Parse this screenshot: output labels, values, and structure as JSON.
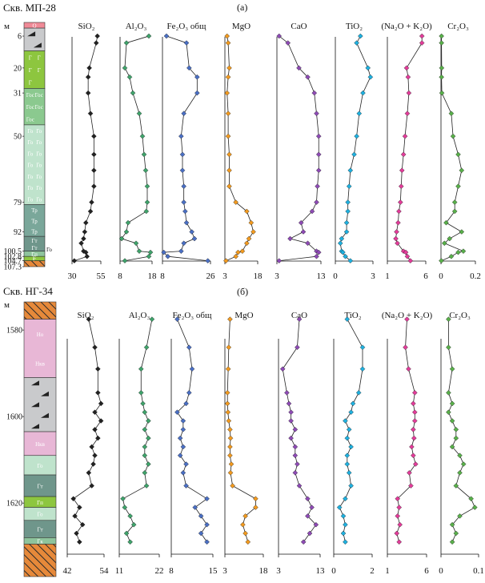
{
  "figure": {
    "panels": [
      {
        "well_label": "Скв. МП-28",
        "panel_label": "(а)",
        "depth_unit": "м",
        "depth_ticks": [
          {
            "label": "6",
            "value": 6
          },
          {
            "label": "20",
            "value": 20
          },
          {
            "label": "31",
            "value": 31
          },
          {
            "label": "50",
            "value": 50
          },
          {
            "label": "79",
            "value": 79
          },
          {
            "label": "92",
            "value": 92
          },
          {
            "label": "100.5",
            "value": 100.5
          },
          {
            "label": "102.8",
            "value": 102.8
          },
          {
            "label": "104.7",
            "value": 104.7
          },
          {
            "label": "107.3",
            "value": 107.3
          }
        ],
        "column_label_side": "Го",
        "lithology": [
          {
            "from": 0,
            "to": 2.5,
            "color": "#f08a97",
            "labels": [
              "Q"
            ],
            "pattern": "none"
          },
          {
            "from": 2.5,
            "to": 12.5,
            "color": "#c9cacc",
            "labels": [],
            "pattern": "gravel"
          },
          {
            "from": 12.5,
            "to": 29,
            "color": "#8dc63f",
            "labels": [
              "Г",
              "Г",
              "Г",
              "Г",
              "Г"
            ],
            "pattern": "none"
          },
          {
            "from": 29,
            "to": 45,
            "color": "#8bc98f",
            "labels": [
              "Гос",
              "Гос",
              "Гос",
              "Гос",
              "Гос"
            ],
            "pattern": "none"
          },
          {
            "from": 45,
            "to": 80,
            "color": "#bfe3cc",
            "labels": [
              "Го",
              "Го",
              "Го",
              "Го",
              "Го",
              "Го",
              "Го",
              "Го",
              "Го",
              "Го",
              "Го",
              "Го",
              "Го",
              "Го"
            ],
            "pattern": "none"
          },
          {
            "from": 80,
            "to": 94,
            "color": "#7aa79a",
            "labels": [
              "Тр",
              "Тр",
              "Тр"
            ],
            "pattern": "none"
          },
          {
            "from": 94,
            "to": 100.5,
            "color": "#6f968b",
            "labels": [
              "Гт",
              "Гт"
            ],
            "pattern": "none"
          },
          {
            "from": 100.5,
            "to": 102.8,
            "color": "#8ec49c",
            "labels": [
              "Гп"
            ],
            "pattern": "none"
          },
          {
            "from": 102.8,
            "to": 104.7,
            "color": "#8dc63f",
            "labels": [
              "Г",
              "Г"
            ],
            "pattern": "none"
          },
          {
            "from": 104.7,
            "to": 107.3,
            "color": "#e6893a",
            "labels": [],
            "pattern": "hatch"
          }
        ]
      },
      {
        "well_label": "Скв. НГ-34",
        "panel_label": "(б)",
        "depth_unit": "м",
        "depth_ticks": [
          {
            "label": "1580",
            "value": 1580
          },
          {
            "label": "1600",
            "value": 1600
          },
          {
            "label": "1620",
            "value": 1620
          }
        ],
        "lithology": [
          {
            "from": 1573.5,
            "to": 1577.5,
            "color": "#e6893a",
            "labels": [],
            "pattern": "hatch"
          },
          {
            "from": 1577.5,
            "to": 1591,
            "color": "#e8b7d6",
            "labels": [
              "Но",
              "Нкв"
            ],
            "pattern": "none"
          },
          {
            "from": 1591,
            "to": 1603.5,
            "color": "#c9cacc",
            "labels": [],
            "pattern": "gravel"
          },
          {
            "from": 1603.5,
            "to": 1609,
            "color": "#e8b7d6",
            "labels": [
              "Нкв"
            ],
            "pattern": "none"
          },
          {
            "from": 1609,
            "to": 1613.5,
            "color": "#bfe3cc",
            "labels": [
              "Го"
            ],
            "pattern": "none"
          },
          {
            "from": 1613.5,
            "to": 1618.5,
            "color": "#6f968b",
            "labels": [
              "Гт"
            ],
            "pattern": "none"
          },
          {
            "from": 1618.5,
            "to": 1621,
            "color": "#8dc63f",
            "labels": [
              "Гп"
            ],
            "pattern": "none"
          },
          {
            "from": 1621,
            "to": 1624,
            "color": "#bfe3cc",
            "labels": [
              "Го"
            ],
            "pattern": "none"
          },
          {
            "from": 1624,
            "to": 1628,
            "color": "#6f968b",
            "labels": [
              "Гт"
            ],
            "pattern": "none"
          },
          {
            "from": 1628,
            "to": 1629.5,
            "color": "#8ec49c",
            "labels": [
              "Гк"
            ],
            "pattern": "none"
          },
          {
            "from": 1629.5,
            "to": 1637,
            "color": "#e6893a",
            "labels": [],
            "pattern": "hatch"
          }
        ]
      }
    ]
  },
  "chart_data": [
    {
      "type": "line",
      "title": "Скв. МП-28 (а)",
      "ylabel": "м",
      "ylim": [
        0,
        107.3
      ],
      "depths": [
        6,
        9,
        20,
        24,
        31,
        40,
        50,
        58,
        65,
        72,
        79,
        83,
        88,
        92,
        95,
        97,
        100.5,
        101,
        102.8,
        104.7
      ],
      "series": [
        {
          "name": "SiO₂",
          "color": "#222222",
          "xlim": [
            30,
            55
          ],
          "xticks": [
            "30",
            "55"
          ],
          "values": [
            52,
            51,
            45,
            44,
            44,
            46,
            49,
            49,
            49,
            49,
            47,
            46,
            42,
            41,
            40,
            38,
            40,
            42,
            43,
            32
          ]
        },
        {
          "name": "Al₂O₃",
          "color": "#3fa36b",
          "xlim": [
            8,
            18
          ],
          "xticks": [
            "8",
            "18"
          ],
          "values": [
            17,
            10,
            9.5,
            11,
            12,
            14,
            15,
            15.5,
            16,
            16.5,
            16.5,
            16.2,
            10.5,
            10,
            8.5,
            13,
            14,
            17.5,
            17,
            9.5
          ]
        },
        {
          "name": "Fe₂O₃ общ",
          "color": "#4a6fc4",
          "xlim": [
            8,
            26
          ],
          "xticks": [
            "8",
            "26"
          ],
          "values": [
            9.5,
            17,
            18,
            21,
            21,
            16,
            15,
            15.5,
            15.5,
            16,
            16,
            16.5,
            17,
            19,
            20,
            16,
            15,
            8.5,
            10,
            25
          ]
        },
        {
          "name": "MgO",
          "color": "#f29a1f",
          "xlim": [
            3,
            18
          ],
          "xticks": [
            "3",
            "18"
          ],
          "values": [
            4,
            4.5,
            5,
            4.5,
            4,
            4.5,
            4.5,
            5,
            5,
            5,
            8,
            13,
            15,
            16,
            14,
            13,
            11,
            9,
            8,
            3.5
          ]
        },
        {
          "name": "CaO",
          "color": "#8e4bb5",
          "xlim": [
            3,
            13
          ],
          "xticks": [
            "3",
            "13"
          ],
          "values": [
            3.5,
            5.5,
            8,
            10,
            11.5,
            12,
            12.5,
            12.5,
            12.5,
            12.2,
            12,
            11,
            8.5,
            9,
            6,
            10,
            12,
            12.5,
            12,
            3.5
          ]
        },
        {
          "name": "TiO₂",
          "color": "#1fb1e0",
          "xlim": [
            0,
            3
          ],
          "xticks": [
            "0",
            "3"
          ],
          "values": [
            2,
            1.7,
            2.6,
            2.8,
            2.2,
            1.9,
            1.7,
            1.5,
            1.2,
            1.1,
            1,
            1,
            0.9,
            0.9,
            0.5,
            0.4,
            0.5,
            0.6,
            0.8,
            1.2
          ]
        },
        {
          "name": "(Na₂O + K₂O)",
          "color": "#e33c9a",
          "xlim": [
            1,
            6
          ],
          "xticks": [
            "1",
            "6"
          ],
          "values": [
            5.5,
            5.5,
            3.5,
            3.7,
            3.8,
            3.6,
            3.3,
            3.1,
            2.9,
            2.8,
            2.7,
            2.5,
            2.4,
            2.2,
            2.1,
            2.3,
            3.1,
            3.4,
            3.6,
            4
          ]
        },
        {
          "name": "Cr₂O₃",
          "color": "#59b04a",
          "xlim": [
            0,
            0.2
          ],
          "xticks": [
            "0",
            "0.2"
          ],
          "values": [
            0.003,
            0.003,
            0.004,
            0.003,
            0.005,
            0.06,
            0.07,
            0.1,
            0.12,
            0.1,
            0.08,
            0.08,
            0.03,
            0.12,
            0.05,
            0.02,
            0.13,
            0.1,
            0.06,
            0.002
          ]
        }
      ]
    },
    {
      "type": "line",
      "title": "Скв. НГ-34 (б)",
      "ylabel": "м",
      "ylim": [
        1573.5,
        1637
      ],
      "depths": [
        1577.5,
        1584,
        1589,
        1594.5,
        1597,
        1599,
        1601,
        1603,
        1605,
        1607,
        1609,
        1611,
        1613,
        1616,
        1619,
        1621,
        1623,
        1625,
        1627,
        1629
      ],
      "series": [
        {
          "name": "SiO₂",
          "color": "#222222",
          "xlim": [
            42,
            54
          ],
          "xticks": [
            "42",
            "54"
          ],
          "values": [
            49,
            51,
            52,
            52,
            53,
            51,
            53,
            51,
            52,
            50,
            51,
            50.5,
            49,
            50,
            44,
            46,
            44.5,
            47,
            45,
            46
          ]
        },
        {
          "name": "Al₂O₃",
          "color": "#3fa36b",
          "xlim": [
            11,
            22
          ],
          "xticks": [
            "11",
            "22"
          ],
          "values": [
            20,
            18.5,
            17,
            17,
            17.5,
            18,
            19,
            18,
            19,
            18,
            18,
            19,
            18,
            18.5,
            12,
            12.5,
            14,
            15,
            13,
            14
          ]
        },
        {
          "name": "Fe₂O₃ общ",
          "color": "#4a6fc4",
          "xlim": [
            8,
            15
          ],
          "xticks": [
            "8",
            "15"
          ],
          "values": [
            9,
            11,
            11.5,
            11,
            10.5,
            9,
            10,
            10,
            9.5,
            10,
            9.5,
            10.5,
            10,
            10.5,
            14,
            12,
            13,
            14,
            13,
            14
          ]
        },
        {
          "name": "MgO",
          "color": "#f29a1f",
          "xlim": [
            3,
            18
          ],
          "xticks": [
            "3",
            "18"
          ],
          "values": [
            5,
            4.5,
            4.3,
            4,
            4,
            4.2,
            4.5,
            5,
            5.2,
            5,
            5,
            5.5,
            5.2,
            6,
            15,
            15,
            11,
            10,
            11,
            12
          ]
        },
        {
          "name": "CaO",
          "color": "#8e4bb5",
          "xlim": [
            3,
            13
          ],
          "xticks": [
            "3",
            "13"
          ],
          "values": [
            8,
            7.5,
            4,
            5,
            5.5,
            6,
            6,
            7,
            6,
            7,
            7,
            7.5,
            7,
            8,
            10,
            11,
            10,
            12,
            10.5,
            9
          ]
        },
        {
          "name": "TiO₂",
          "color": "#1fb1e0",
          "xlim": [
            0,
            2
          ],
          "xticks": [
            "0",
            "2"
          ],
          "values": [
            0.7,
            1.5,
            1.5,
            1.3,
            1,
            0.9,
            0.6,
            0.8,
            0.7,
            0.9,
            0.7,
            0.7,
            0.8,
            0.9,
            0.6,
            0.3,
            0.5,
            0.6,
            0.5,
            0.6
          ]
        },
        {
          "name": "(Na₂O + K₂O)",
          "color": "#e33c9a",
          "xlim": [
            1,
            6
          ],
          "xticks": [
            "1",
            "6"
          ],
          "values": [
            3.5,
            3.3,
            3.7,
            4.5,
            4.3,
            4.5,
            4.5,
            4.3,
            4.4,
            4.1,
            4.3,
            4.6,
            3.8,
            4.0,
            2.3,
            2.5,
            2.3,
            2.6,
            2.2,
            2.5
          ]
        },
        {
          "name": "Cr₂O₃",
          "color": "#59b04a",
          "xlim": [
            0,
            0.1
          ],
          "xticks": [
            "0",
            "0.1"
          ],
          "values": [
            0.02,
            0.02,
            0.03,
            0.02,
            0.03,
            0.02,
            0.03,
            0.04,
            0.04,
            0.03,
            0.05,
            0.06,
            0.05,
            0.04,
            0.08,
            0.09,
            0.05,
            0.03,
            0.04,
            0.03
          ]
        }
      ]
    }
  ]
}
